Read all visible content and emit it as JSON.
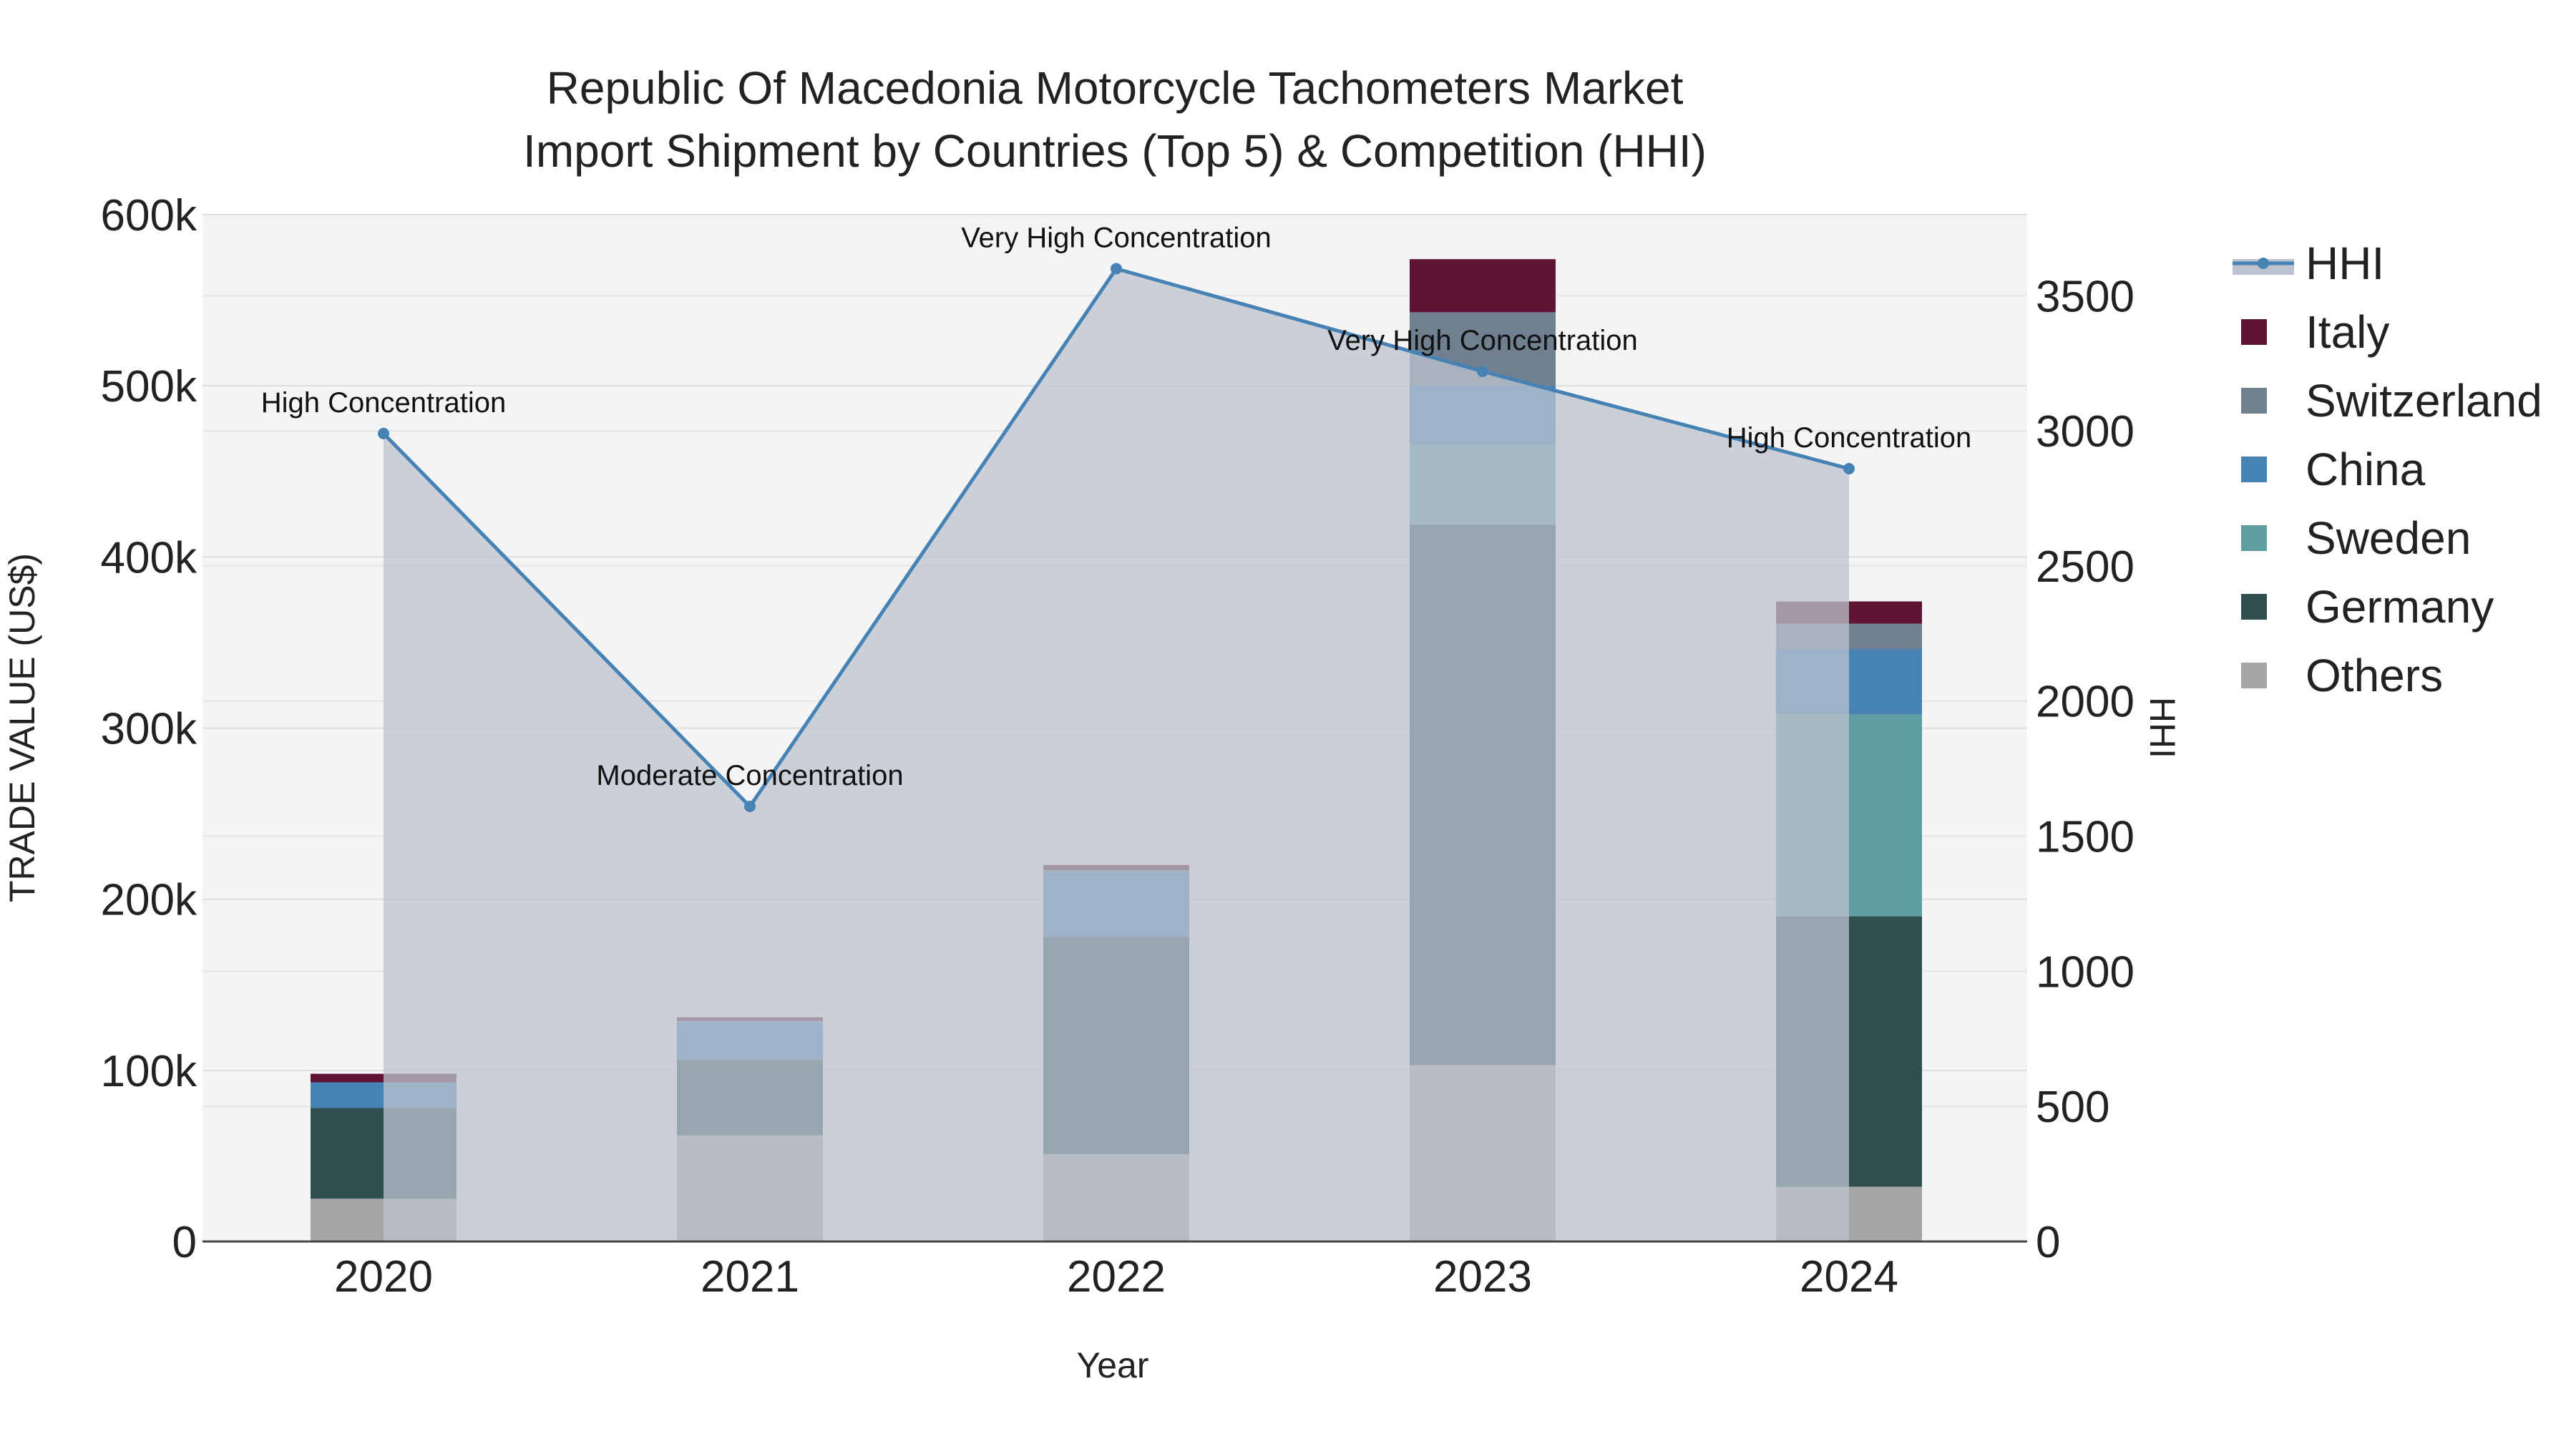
{
  "chart_data": {
    "type": "bar",
    "title_line1": "Republic Of Macedonia Motorcycle Tachometers Market",
    "title_line2": "Import Shipment by Countries (Top 5) & Competition (HHI)",
    "xlabel": "Year",
    "ylabel": "TRADE VALUE (US$)",
    "y2label": "HHI",
    "categories": [
      "2020",
      "2021",
      "2022",
      "2023",
      "2024"
    ],
    "ylim": [
      0,
      600000
    ],
    "y2lim": [
      0,
      3800
    ],
    "y_ticks": [
      {
        "value": 0,
        "label": "0"
      },
      {
        "value": 100000,
        "label": "100k"
      },
      {
        "value": 200000,
        "label": "200k"
      },
      {
        "value": 300000,
        "label": "300k"
      },
      {
        "value": 400000,
        "label": "400k"
      },
      {
        "value": 500000,
        "label": "500k"
      },
      {
        "value": 600000,
        "label": "600k"
      }
    ],
    "y2_ticks": [
      {
        "value": 0,
        "label": "0"
      },
      {
        "value": 500,
        "label": "500"
      },
      {
        "value": 1000,
        "label": "1000"
      },
      {
        "value": 1500,
        "label": "1500"
      },
      {
        "value": 2000,
        "label": "2000"
      },
      {
        "value": 2500,
        "label": "2500"
      },
      {
        "value": 3000,
        "label": "3000"
      },
      {
        "value": 3500,
        "label": "3500"
      }
    ],
    "series": [
      {
        "name": "Others",
        "color": "#a6a6a6",
        "values": [
          25000,
          62000,
          51000,
          103000,
          32000
        ]
      },
      {
        "name": "Germany",
        "color": "#2f4f4f",
        "values": [
          53000,
          44000,
          127000,
          316000,
          158000
        ]
      },
      {
        "name": "Sweden",
        "color": "#5f9ea0",
        "values": [
          0,
          0,
          0,
          46000,
          118000
        ]
      },
      {
        "name": "China",
        "color": "#4682b4",
        "values": [
          15000,
          22000,
          38000,
          35000,
          38000
        ]
      },
      {
        "name": "Switzerland",
        "color": "#708090",
        "values": [
          0,
          1000,
          1000,
          43000,
          15000
        ]
      },
      {
        "name": "Italy",
        "color": "#5e1533",
        "values": [
          5000,
          2000,
          3000,
          31000,
          13000
        ]
      }
    ],
    "hhi": {
      "name": "HHI",
      "color": "#4682b4",
      "fill_color": "#bcc3cf",
      "values": [
        2990,
        1610,
        3600,
        3220,
        2860
      ],
      "annotations": [
        "High Concentration",
        "Moderate Concentration",
        "Very High Concentration",
        "Very High Concentration",
        "High Concentration"
      ]
    },
    "legend_order": [
      "HHI",
      "Italy",
      "Switzerland",
      "China",
      "Sweden",
      "Germany",
      "Others"
    ],
    "legend_position": "top-right",
    "background": "#f4f4f4"
  }
}
